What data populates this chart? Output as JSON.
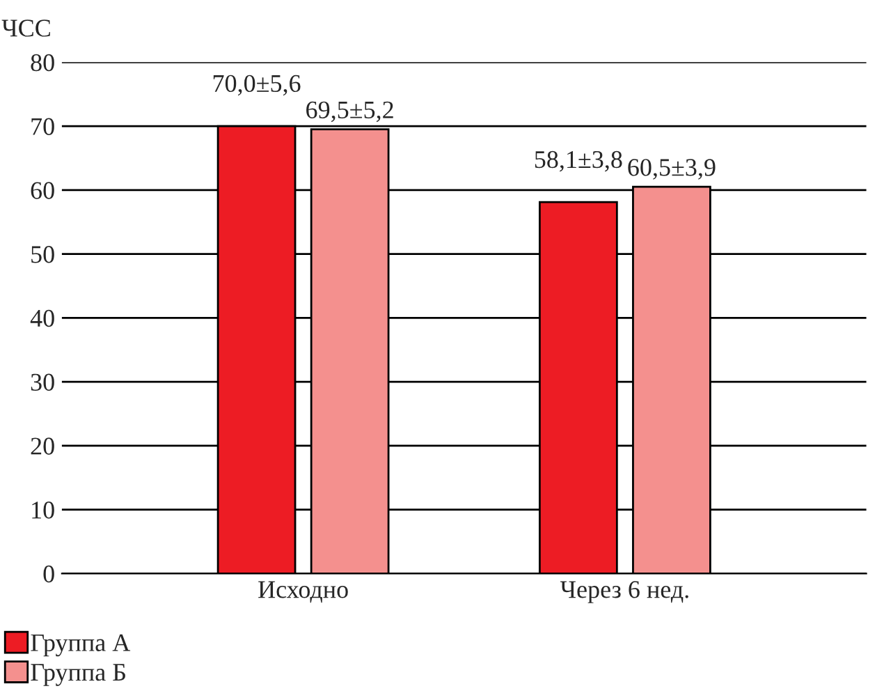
{
  "chart_data": {
    "type": "bar",
    "ylabel": "ЧСС",
    "categories": [
      "Исходно",
      "Через 6 нед."
    ],
    "series": [
      {
        "name": "Группа А",
        "color": "#ed1c24",
        "values": [
          70.0,
          58.1
        ],
        "value_labels": [
          "70,0±5,6",
          "58,1±3,8"
        ]
      },
      {
        "name": "Группа Б",
        "color": "#f4908e",
        "values": [
          69.5,
          60.5
        ],
        "value_labels": [
          "69,5±5,2",
          "60,5±3,9"
        ]
      }
    ],
    "ylim": [
      0,
      80
    ],
    "yticks": [
      0,
      10,
      20,
      30,
      40,
      50,
      60,
      70,
      80
    ],
    "grid": "y",
    "legend": "bottom left"
  }
}
